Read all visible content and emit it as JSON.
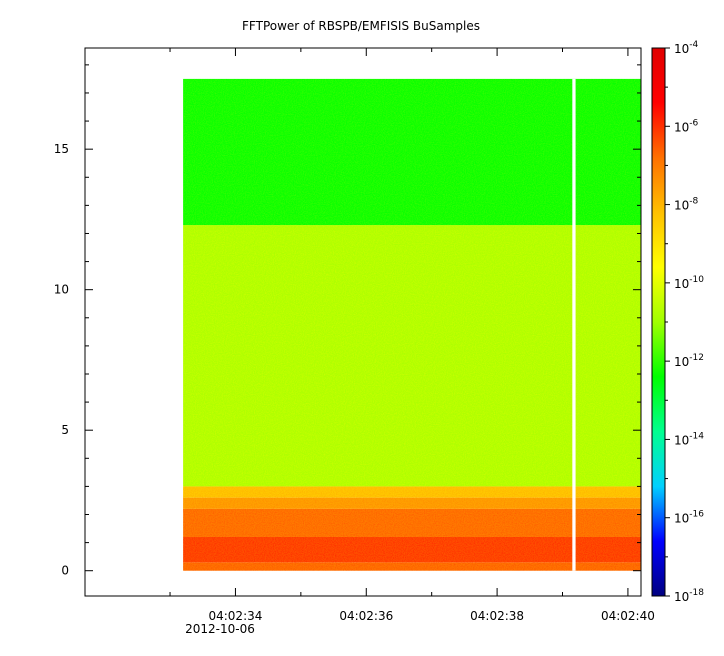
{
  "chart_data": {
    "type": "heatmap",
    "title": "FFTPower of RBSPB/EMFISIS  BuSamples",
    "xlabel": "",
    "ylabel": "",
    "x_range": [
      "04:02:31.7",
      "04:02:40.2"
    ],
    "x_ticks": [
      "04:02:34",
      "04:02:36",
      "04:02:38",
      "04:02:40"
    ],
    "x_tick_values_s": [
      34,
      36,
      38,
      40
    ],
    "x_minor_tick_values_s": [
      33,
      35,
      37,
      39
    ],
    "x_date_label": "2012-10-06",
    "ylim": [
      -0.9,
      18.6
    ],
    "y_ticks": [
      0,
      5,
      10,
      15
    ],
    "data_extent": {
      "x_start_s": 33.2,
      "x_end_s": 40.2,
      "y_min": 0,
      "y_max": 17.5
    },
    "data_gap": {
      "x_start_s": 39.15,
      "x_end_s": 39.2
    },
    "bands": [
      {
        "y_from": 0.0,
        "y_to": 0.3,
        "log10_power": -6.9
      },
      {
        "y_from": 0.3,
        "y_to": 1.2,
        "log10_power": -6.4
      },
      {
        "y_from": 1.2,
        "y_to": 2.2,
        "log10_power": -7.0
      },
      {
        "y_from": 2.2,
        "y_to": 2.6,
        "log10_power": -7.7
      },
      {
        "y_from": 2.6,
        "y_to": 3.0,
        "log10_power": -8.4
      },
      {
        "y_from": 3.0,
        "y_to": 12.3,
        "log10_power": -10.8
      },
      {
        "y_from": 12.3,
        "y_to": 17.5,
        "log10_power": -12.3
      }
    ],
    "colorbar": {
      "scale": "log",
      "range": [
        -18,
        -4
      ],
      "tick_base": "10",
      "tick_exponents": [
        "-4",
        "-6",
        "-8",
        "-10",
        "-12",
        "-14",
        "-16",
        "-18"
      ],
      "colors": [
        "#000080",
        "#0000ff",
        "#00d0ff",
        "#00ff90",
        "#00ff00",
        "#a0ff00",
        "#ffff00",
        "#ffc000",
        "#ff7000",
        "#ff0000",
        "#e00000"
      ]
    }
  }
}
